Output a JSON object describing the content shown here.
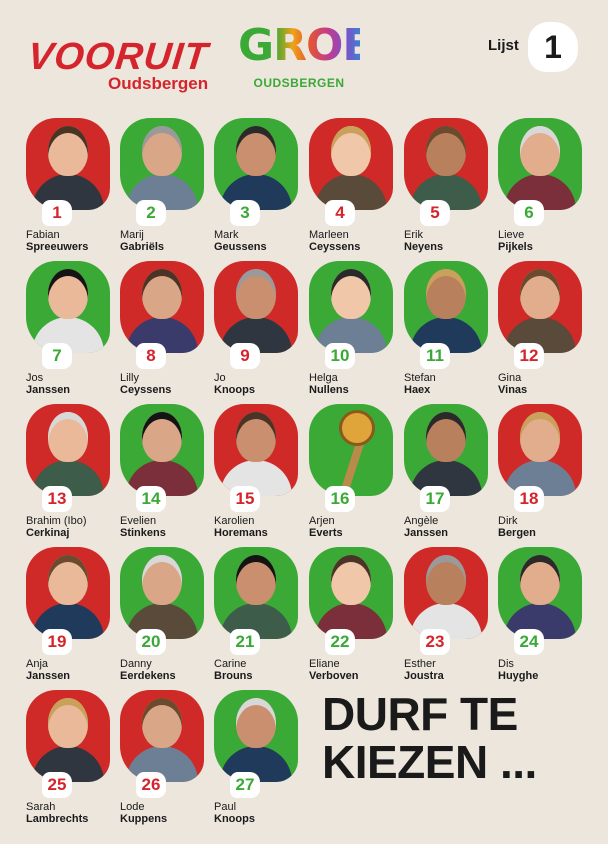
{
  "header": {
    "vooruit_logo": "VOORUIT",
    "vooruit_location": "Oudsbergen",
    "groen_logo": "GROEN",
    "groen_location": "OUDSBERGEN",
    "list_label": "Lijst",
    "list_number": "1"
  },
  "colors": {
    "red": "#cf2a27",
    "green": "#3aa935",
    "background": "#ece6dd"
  },
  "candidates": [
    {
      "number": "1",
      "first": "Fabian",
      "last": "Spreeuwers",
      "color": "red"
    },
    {
      "number": "2",
      "first": "Marij",
      "last": "Gabriëls",
      "color": "green"
    },
    {
      "number": "3",
      "first": "Mark",
      "last": "Geussens",
      "color": "green"
    },
    {
      "number": "4",
      "first": "Marleen",
      "last": "Ceyssens",
      "color": "red"
    },
    {
      "number": "5",
      "first": "Erik",
      "last": "Neyens",
      "color": "red"
    },
    {
      "number": "6",
      "first": "Lieve",
      "last": "Pijkels",
      "color": "green"
    },
    {
      "number": "7",
      "first": "Jos",
      "last": "Janssen",
      "color": "green"
    },
    {
      "number": "8",
      "first": "Lilly",
      "last": "Ceyssens",
      "color": "red"
    },
    {
      "number": "9",
      "first": "Jo",
      "last": "Knoops",
      "color": "red"
    },
    {
      "number": "10",
      "first": "Helga",
      "last": "Nullens",
      "color": "green"
    },
    {
      "number": "11",
      "first": "Stefan",
      "last": "Haex",
      "color": "green"
    },
    {
      "number": "12",
      "first": "Gina",
      "last": "Vinas",
      "color": "red"
    },
    {
      "number": "13",
      "first": "Brahim (Ibo)",
      "last": "Cerkinaj",
      "color": "red"
    },
    {
      "number": "14",
      "first": "Evelien",
      "last": "Stinkens",
      "color": "green"
    },
    {
      "number": "15",
      "first": "Karolien",
      "last": "Horemans",
      "color": "red"
    },
    {
      "number": "16",
      "first": "Arjen",
      "last": "Everts",
      "color": "green"
    },
    {
      "number": "17",
      "first": "Angèle",
      "last": "Janssen",
      "color": "green"
    },
    {
      "number": "18",
      "first": "Dirk",
      "last": "Bergen",
      "color": "red"
    },
    {
      "number": "19",
      "first": "Anja",
      "last": "Janssen",
      "color": "red"
    },
    {
      "number": "20",
      "first": "Danny",
      "last": "Eerdekens",
      "color": "green"
    },
    {
      "number": "21",
      "first": "Carine",
      "last": "Brouns",
      "color": "green"
    },
    {
      "number": "22",
      "first": "Eliane",
      "last": "Verboven",
      "color": "green"
    },
    {
      "number": "23",
      "first": "Esther",
      "last": "Joustra",
      "color": "red"
    },
    {
      "number": "24",
      "first": "Dis",
      "last": "Huyghe",
      "color": "green"
    },
    {
      "number": "25",
      "first": "Sarah",
      "last": "Lambrechts",
      "color": "red"
    },
    {
      "number": "26",
      "first": "Lode",
      "last": "Kuppens",
      "color": "red"
    },
    {
      "number": "27",
      "first": "Paul",
      "last": "Knoops",
      "color": "green"
    }
  ],
  "slogan": {
    "line1": "DURF TE",
    "line2": "KIEZEN ..."
  }
}
